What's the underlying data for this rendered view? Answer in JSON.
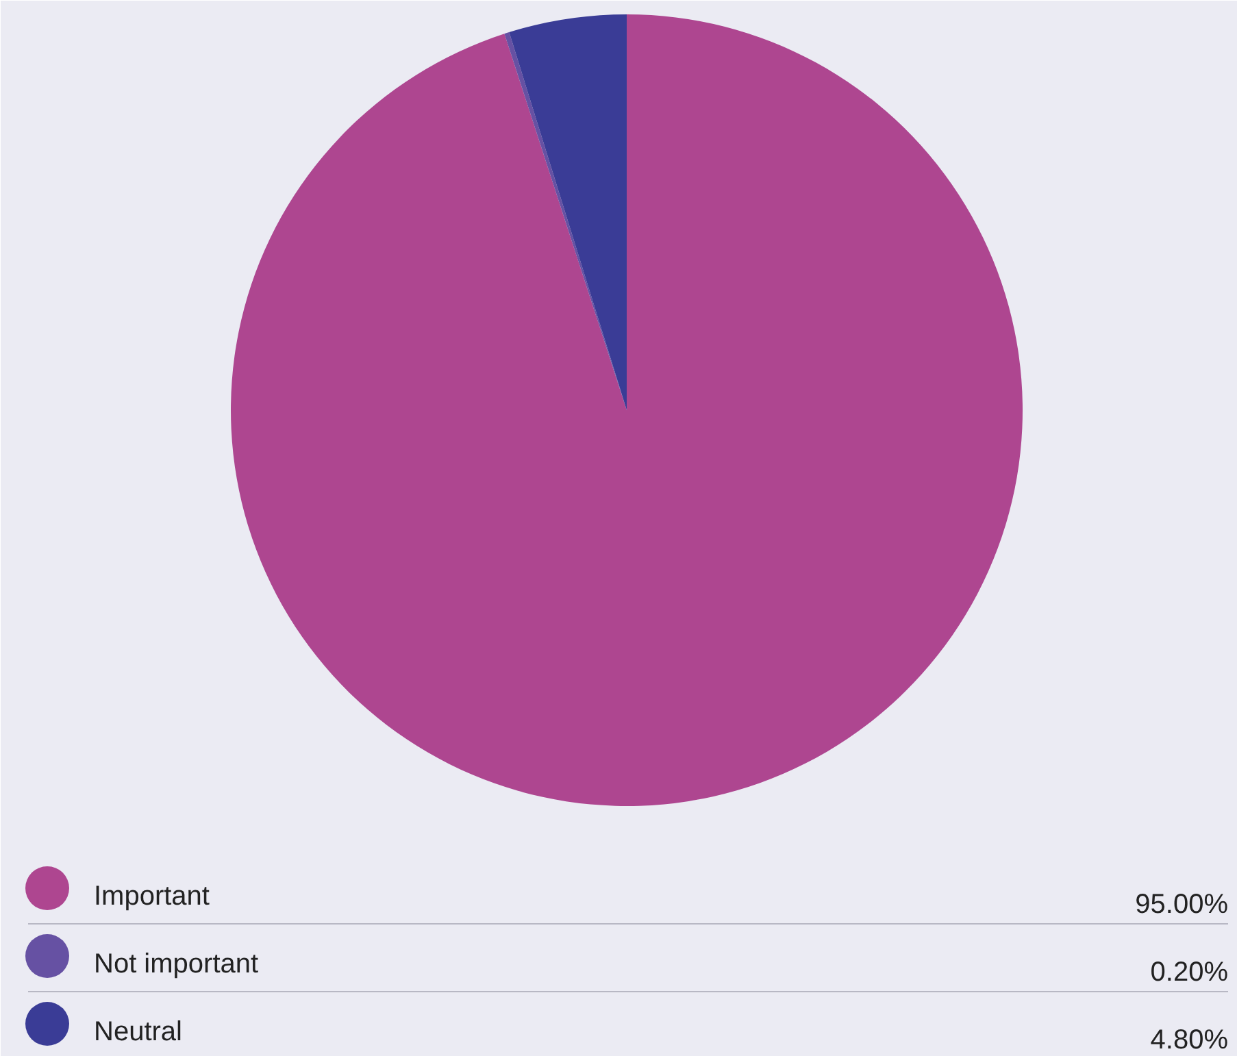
{
  "chart_data": {
    "type": "pie",
    "categories": [
      "Important",
      "Not important",
      "Neutral"
    ],
    "values": [
      95,
      0.2,
      4.8
    ],
    "value_labels": [
      "95.00%",
      "0.20%",
      "4.80%"
    ],
    "colors": [
      "#ae4690",
      "#6651a3",
      "#3a3c96"
    ],
    "legend": "bottom"
  }
}
